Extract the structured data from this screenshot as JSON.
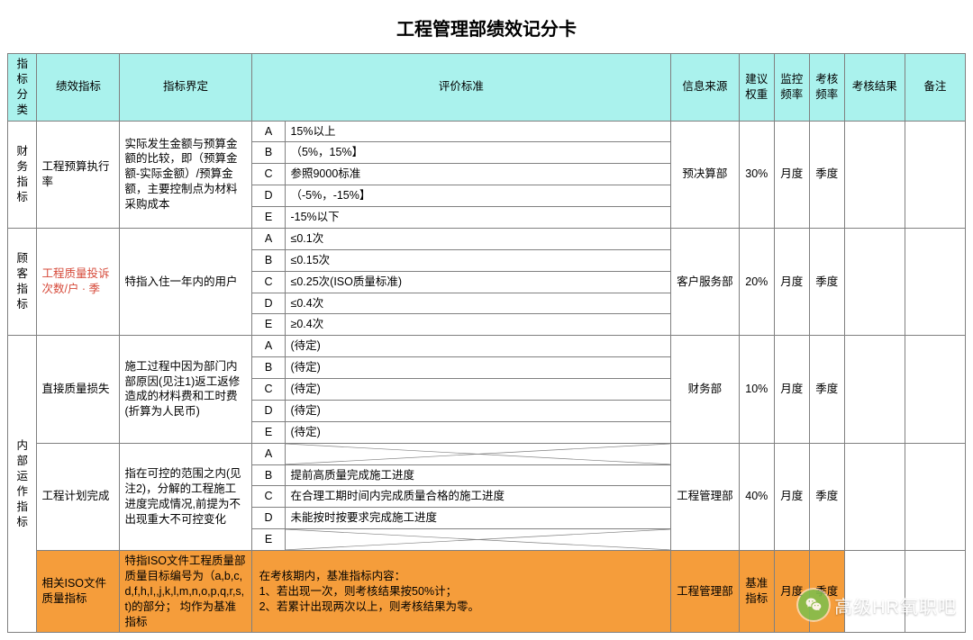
{
  "title": "工程管理部绩效记分卡",
  "headers": {
    "category": "指标分类",
    "metric": "绩效指标",
    "definition": "指标界定",
    "criteria": "评价标准",
    "source": "信息来源",
    "weight": "建议权重",
    "mon_freq": "监控频率",
    "assess_freq": "考核频率",
    "result": "考核结果",
    "note": "备注"
  },
  "groups": [
    {
      "category": "财务指标",
      "rows": [
        {
          "metric": "工程预算执行率",
          "metric_red": false,
          "definition": "实际发生金额与预算金额的比较，即（预算金额-实际金额）/预算金额，主要控制点为材料采购成本",
          "grades": [
            {
              "g": "A",
              "d": "15%以上"
            },
            {
              "g": "B",
              "d": "（5%，15%】"
            },
            {
              "g": "C",
              "d": "参照9000标准"
            },
            {
              "g": "D",
              "d": "（-5%，-15%】"
            },
            {
              "g": "E",
              "d": "-15%以下"
            }
          ],
          "source": "预决算部",
          "weight": "30%",
          "mon_freq": "月度",
          "assess_freq": "季度"
        }
      ]
    },
    {
      "category": "顾客指标",
      "rows": [
        {
          "metric": "工程质量投诉次数/户 · 季",
          "metric_red": true,
          "definition": "特指入住一年内的用户",
          "grades": [
            {
              "g": "A",
              "d": "≤0.1次"
            },
            {
              "g": "B",
              "d": "≤0.15次"
            },
            {
              "g": "C",
              "d": "≤0.25次(ISO质量标准)"
            },
            {
              "g": "D",
              "d": "≤0.4次"
            },
            {
              "g": "E",
              "d": "≥0.4次"
            }
          ],
          "source": "客户服务部",
          "weight": "20%",
          "mon_freq": "月度",
          "assess_freq": "季度"
        }
      ]
    },
    {
      "category": "内部运作指标",
      "rows": [
        {
          "metric": "直接质量损失",
          "metric_red": false,
          "definition": "施工过程中因为部门内部原因(见注1)返工返修造成的材料费和工时费(折算为人民币)",
          "grades": [
            {
              "g": "A",
              "d": "(待定)"
            },
            {
              "g": "B",
              "d": "(待定)"
            },
            {
              "g": "C",
              "d": "(待定)"
            },
            {
              "g": "D",
              "d": "(待定)"
            },
            {
              "g": "E",
              "d": "(待定)"
            }
          ],
          "source": "财务部",
          "weight": "10%",
          "mon_freq": "月度",
          "assess_freq": "季度"
        },
        {
          "metric": "工程计划完成",
          "metric_red": false,
          "definition": "指在可控的范围之内(见注2)，分解的工程施工进度完成情况,前提为不出现重大不可控变化",
          "grades": [
            {
              "g": "A",
              "d": "",
              "diag": true
            },
            {
              "g": "B",
              "d": "提前高质量完成施工进度"
            },
            {
              "g": "C",
              "d": "在合理工期时间内完成质量合格的施工进度"
            },
            {
              "g": "D",
              "d": "未能按时按要求完成施工进度"
            },
            {
              "g": "E",
              "d": "",
              "diag": true
            }
          ],
          "source": "工程管理部",
          "weight": "40%",
          "mon_freq": "月度",
          "assess_freq": "季度"
        },
        {
          "metric": "相关ISO文件质量指标",
          "metric_red": false,
          "orange": true,
          "definition": "特指ISO文件工程质量部质量目标编号为（a,b,c,d,f,h,I,,j,k,l,m,n,o,p,q,r,s,t)的部分；  均作为基准指标",
          "full_desc": "在考核期内，基准指标内容：\n1、若出现一次，则考核结果按50%计；\n2、若累计出现两次以上，则考核结果为零。",
          "source": "工程管理部",
          "weight": "基准指标",
          "mon_freq": "月度",
          "assess_freq": "季度"
        }
      ]
    }
  ],
  "watermark": "高级HR氧职吧",
  "colors": {
    "header_bg": "#aaf2ed",
    "orange_bg": "#f59d3b",
    "border": "#808080",
    "red_text": "#d64a3a",
    "wm_green": "#7fbf4d"
  }
}
